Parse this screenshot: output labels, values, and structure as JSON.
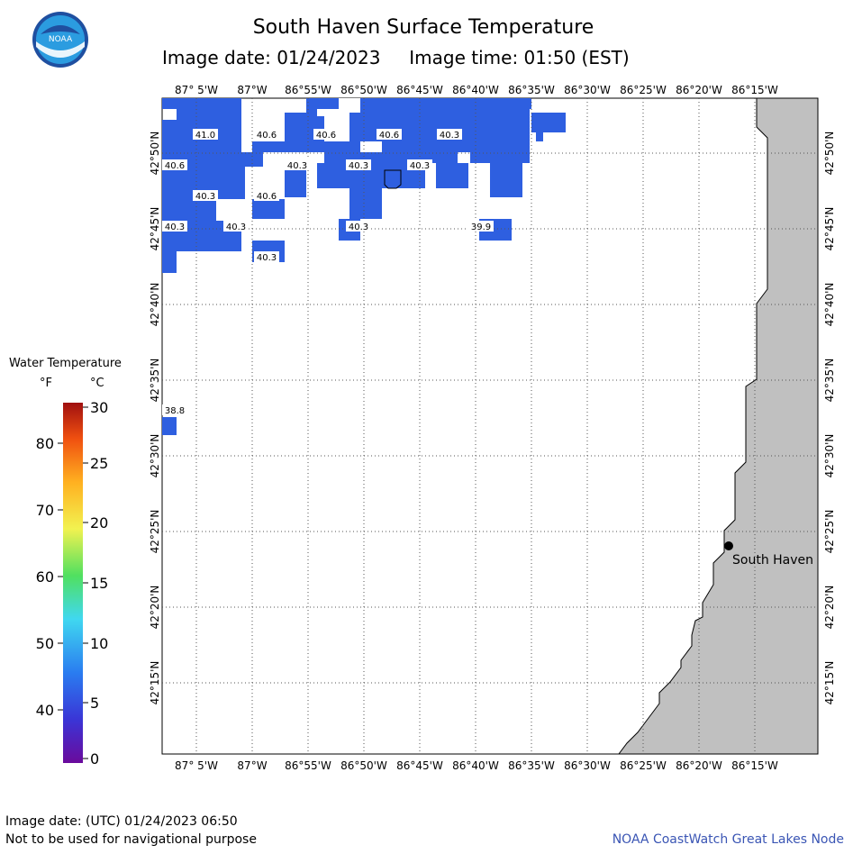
{
  "header": {
    "title": "South Haven Surface Temperature",
    "image_date": "Image date: 01/24/2023",
    "image_time": "Image time: 01:50 (EST)"
  },
  "logo": {
    "text": "NOAA"
  },
  "legend": {
    "title": "Water Temperature",
    "unit_f": "°F",
    "unit_c": "°C",
    "ticks_f": [
      "80",
      "70",
      "60",
      "50",
      "40"
    ],
    "ticks_c": [
      "30",
      "25",
      "20",
      "15",
      "10",
      "5",
      "0"
    ]
  },
  "map": {
    "lon_labels": [
      "87° 5'W",
      "87°W",
      "86°55'W",
      "86°50'W",
      "86°45'W",
      "86°40'W",
      "86°35'W",
      "86°30'W",
      "86°25'W",
      "86°20'W",
      "86°15'W"
    ],
    "lat_labels": [
      "42°50'N",
      "42°45'N",
      "42°40'N",
      "42°35'N",
      "42°30'N",
      "42°25'N",
      "42°20'N",
      "42°15'N"
    ],
    "temperature_labels": [
      "41.0",
      "40.6",
      "40.6",
      "40.6",
      "40.3",
      "40.6",
      "40.3",
      "40.3",
      "40.3",
      "40.3",
      "40.6",
      "40.3",
      "40.3",
      "40.3",
      "39.9",
      "40.3",
      "38.8"
    ],
    "city": "South Haven",
    "water_color": "#2e5fe0",
    "land_color": "#c0c0c0"
  },
  "footer": {
    "utc_date": "Image date: (UTC) 01/24/2023  06:50",
    "disclaimer": "Not to be used for navigational purpose",
    "credit": "NOAA CoastWatch Great Lakes Node"
  }
}
